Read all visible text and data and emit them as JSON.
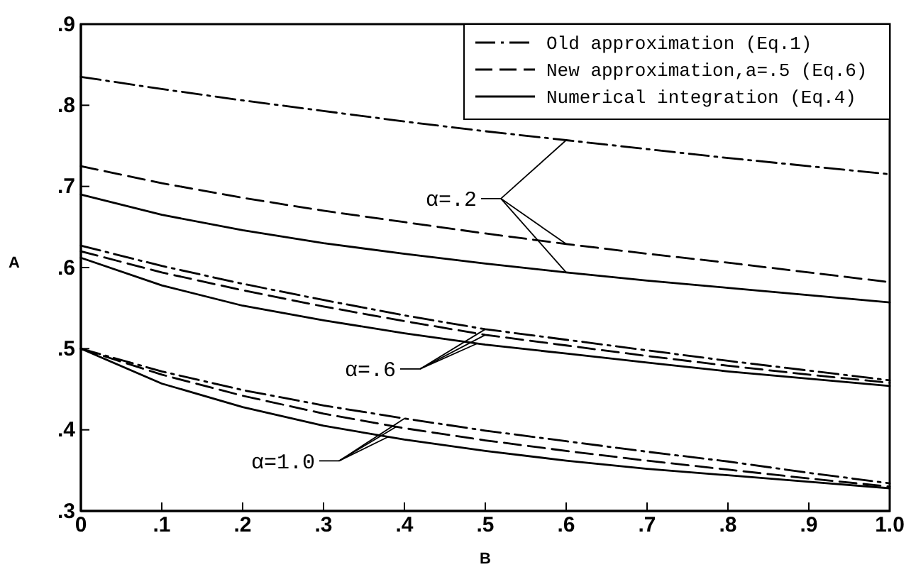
{
  "chart_data": {
    "type": "line",
    "x": [
      0,
      0.1,
      0.2,
      0.3,
      0.4,
      0.5,
      0.6,
      0.7,
      0.8,
      0.9,
      1.0
    ],
    "series": [
      {
        "name": "Old approximation (Eq.1)",
        "color": "#000000",
        "line_style": "dashdot",
        "values": [
          0.835,
          0.82,
          0.806,
          0.793,
          0.78,
          0.768,
          0.757,
          0.746,
          0.735,
          0.725,
          0.715
        ]
      },
      {
        "name": "New approximation,a=.5 (Eq.6)",
        "color": "#000000",
        "line_style": "dashed",
        "values": [
          0.725,
          0.704,
          0.686,
          0.67,
          0.656,
          0.642,
          0.629,
          0.617,
          0.606,
          0.594,
          0.582
        ]
      },
      {
        "name": "Numerical integration (Eq.4)",
        "color": "#000000",
        "line_style": "solid",
        "values": [
          0.69,
          0.665,
          0.646,
          0.63,
          0.617,
          0.605,
          0.594,
          0.584,
          0.575,
          0.566,
          0.557
        ]
      },
      {
        "color": "#000000",
        "line_style": "dashdot",
        "values": [
          0.627,
          0.602,
          0.58,
          0.56,
          0.541,
          0.524,
          0.511,
          0.498,
          0.485,
          0.473,
          0.461
        ]
      },
      {
        "color": "#000000",
        "line_style": "dashed",
        "values": [
          0.62,
          0.594,
          0.572,
          0.552,
          0.534,
          0.517,
          0.504,
          0.491,
          0.479,
          0.468,
          0.458
        ]
      },
      {
        "color": "#000000",
        "line_style": "solid",
        "values": [
          0.612,
          0.578,
          0.553,
          0.535,
          0.519,
          0.505,
          0.494,
          0.483,
          0.472,
          0.463,
          0.454
        ]
      },
      {
        "color": "#000000",
        "line_style": "dashdot",
        "values": [
          0.5,
          0.472,
          0.449,
          0.43,
          0.414,
          0.399,
          0.386,
          0.373,
          0.361,
          0.347,
          0.334
        ]
      },
      {
        "color": "#000000",
        "line_style": "dashed",
        "values": [
          0.5,
          0.468,
          0.442,
          0.42,
          0.402,
          0.387,
          0.374,
          0.362,
          0.351,
          0.34,
          0.33
        ]
      },
      {
        "color": "#000000",
        "line_style": "solid",
        "values": [
          0.5,
          0.457,
          0.428,
          0.405,
          0.388,
          0.374,
          0.362,
          0.352,
          0.344,
          0.336,
          0.328
        ]
      }
    ],
    "xlabel": "B",
    "ylabel": "A",
    "xlim": [
      0,
      1.0
    ],
    "ylim": [
      0.3,
      0.9
    ],
    "xticks": [
      0,
      {
        "value": 0.1,
        "label": ".1"
      },
      {
        "value": 0.2,
        "label": ".2"
      },
      {
        "value": 0.3,
        "label": ".3"
      },
      {
        "value": 0.4,
        "label": ".4"
      },
      {
        "value": 0.5,
        "label": ".5"
      },
      {
        "value": 0.6,
        "label": ".6"
      },
      {
        "value": 0.7,
        "label": ".7"
      },
      {
        "value": 0.8,
        "label": ".8"
      },
      {
        "value": 0.9,
        "label": ".9"
      },
      {
        "value": 1.0,
        "label": "1.0"
      }
    ],
    "yticks": [
      {
        "value": 0.3,
        "label": ".3"
      },
      {
        "value": 0.4,
        "label": ".4"
      },
      {
        "value": 0.5,
        "label": ".5"
      },
      {
        "value": 0.6,
        "label": ".6"
      },
      {
        "value": 0.7,
        "label": ".7"
      },
      {
        "value": 0.8,
        "label": ".8"
      },
      {
        "value": 0.9,
        "label": ".9"
      }
    ],
    "annotations": [
      {
        "text": "α=.2",
        "x": 0.6,
        "y": 0.629
      },
      {
        "text": "α=.6",
        "x": 0.5,
        "y": 0.517
      },
      {
        "text": "α=1.0",
        "x": 0.4,
        "y": 0.402
      }
    ],
    "legend": "top right",
    "grid": false
  }
}
